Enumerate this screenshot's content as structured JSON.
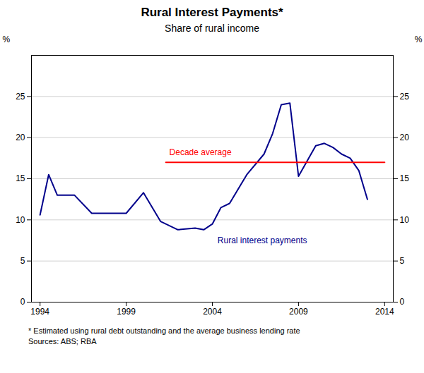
{
  "chart_data": {
    "type": "line",
    "title": "Rural Interest Payments*",
    "subtitle": "Share of rural income",
    "footnotes": [
      "*  Estimated using rural debt outstanding and the average business lending rate",
      "Sources: ABS; RBA"
    ],
    "ylabel": "%",
    "y2label": "%",
    "xlim": [
      1993.5,
      2014.5
    ],
    "xticks": [
      1994,
      1999,
      2004,
      2009,
      2014
    ],
    "ylim": [
      0,
      30
    ],
    "yticks": [
      0,
      5,
      10,
      15,
      20,
      25
    ],
    "y2lim": [
      0,
      30
    ],
    "y2ticks": [
      0,
      5,
      10,
      15,
      20,
      25
    ],
    "grid": true,
    "series": [
      {
        "color": "#00008B",
        "x": [
          1994,
          1994.5,
          1995,
          1996,
          1997,
          1997.5,
          1998,
          1999,
          2000,
          2001,
          2002,
          2003,
          2003.5,
          2004,
          2004.5,
          2005,
          2006,
          2007,
          2007.5,
          2008,
          2008.5,
          2009,
          2010,
          2010.5,
          2011,
          2011.5,
          2012,
          2012.5,
          2013
        ],
        "values": [
          10.6,
          15.5,
          13.0,
          13.0,
          10.8,
          10.8,
          10.8,
          10.8,
          13.3,
          9.8,
          8.8,
          9.0,
          8.8,
          9.5,
          11.5,
          12.0,
          15.5,
          18.0,
          20.5,
          24.0,
          24.2,
          15.3,
          19.0,
          19.3,
          18.8,
          18.0,
          17.5,
          16.0,
          12.5
        ]
      },
      {
        "color": "#FF0000",
        "x": [
          2001.3,
          2014.0
        ],
        "values": [
          17.0,
          17.0
        ]
      }
    ],
    "annotations": [
      {
        "text": "Decade average",
        "x": 2001.5,
        "y": 18.2,
        "color": "#FF0000"
      },
      {
        "text": "Rural interest payments",
        "x": 2004.3,
        "y": 7.5,
        "color": "#00008B"
      }
    ]
  }
}
